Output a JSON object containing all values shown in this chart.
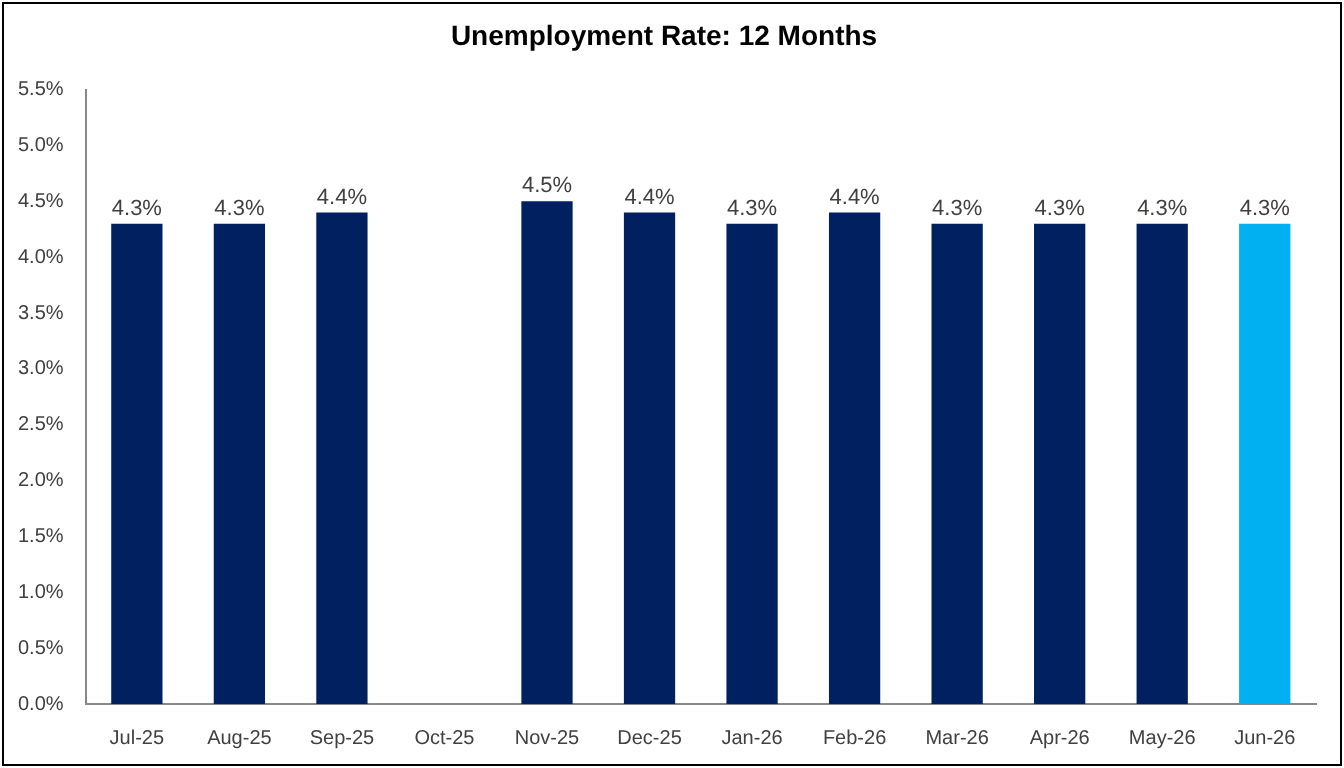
{
  "chart_data": {
    "type": "bar",
    "title": "Unemployment Rate: 12 Months",
    "categories": [
      "Jul-25",
      "Aug-25",
      "Sep-25",
      "Oct-25",
      "Nov-25",
      "Dec-25",
      "Jan-26",
      "Feb-26",
      "Mar-26",
      "Apr-26",
      "May-26",
      "Jun-26"
    ],
    "values": [
      4.3,
      4.3,
      4.4,
      null,
      4.5,
      4.4,
      4.3,
      4.4,
      4.3,
      4.3,
      4.3,
      4.3
    ],
    "colors": [
      "#002060",
      "#002060",
      "#002060",
      "#002060",
      "#002060",
      "#002060",
      "#002060",
      "#002060",
      "#002060",
      "#002060",
      "#002060",
      "#00b0f0"
    ],
    "value_labels": [
      "4.3%",
      "4.3%",
      "4.4%",
      null,
      "4.5%",
      "4.4%",
      "4.3%",
      "4.4%",
      "4.3%",
      "4.3%",
      "4.3%",
      "4.3%"
    ],
    "ylim": [
      0,
      5.5
    ],
    "yticks": [
      {
        "value": 0,
        "label": "0.0%"
      },
      {
        "value": 0.5,
        "label": "0.5%"
      },
      {
        "value": 1,
        "label": "1.0%"
      },
      {
        "value": 1.5,
        "label": "1.5%"
      },
      {
        "value": 2,
        "label": "2.0%"
      },
      {
        "value": 2.5,
        "label": "2.5%"
      },
      {
        "value": 3,
        "label": "3.0%"
      },
      {
        "value": 3.5,
        "label": "3.5%"
      },
      {
        "value": 4,
        "label": "4.0%"
      },
      {
        "value": 4.5,
        "label": "4.5%"
      },
      {
        "value": 5,
        "label": "5.0%"
      },
      {
        "value": 5.5,
        "label": "5.5%"
      }
    ],
    "grid": false,
    "legend": false
  }
}
